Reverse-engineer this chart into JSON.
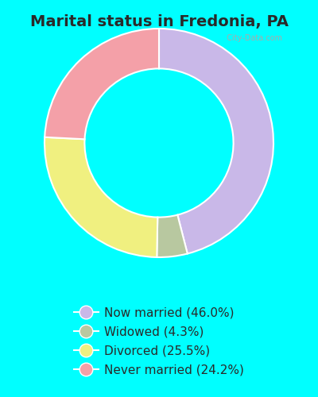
{
  "title": "Marital status in Fredonia, PA",
  "title_fontsize": 14,
  "background_color_top": "#00FFFF",
  "background_color_chart": "#d8f0e8",
  "legend_background": "#00FFFF",
  "slices": [
    {
      "label": "Now married (46.0%)",
      "value": 46.0,
      "color": "#c9b8e8"
    },
    {
      "label": "Widowed (4.3%)",
      "value": 4.3,
      "color": "#b8c8a0"
    },
    {
      "label": "Divorced (25.5%)",
      "value": 25.5,
      "color": "#f0f080"
    },
    {
      "label": "Never married (24.2%)",
      "value": 24.2,
      "color": "#f4a0a8"
    }
  ],
  "donut_width": 0.35,
  "start_angle": 90,
  "figsize": [
    4.0,
    5.0
  ],
  "dpi": 100
}
